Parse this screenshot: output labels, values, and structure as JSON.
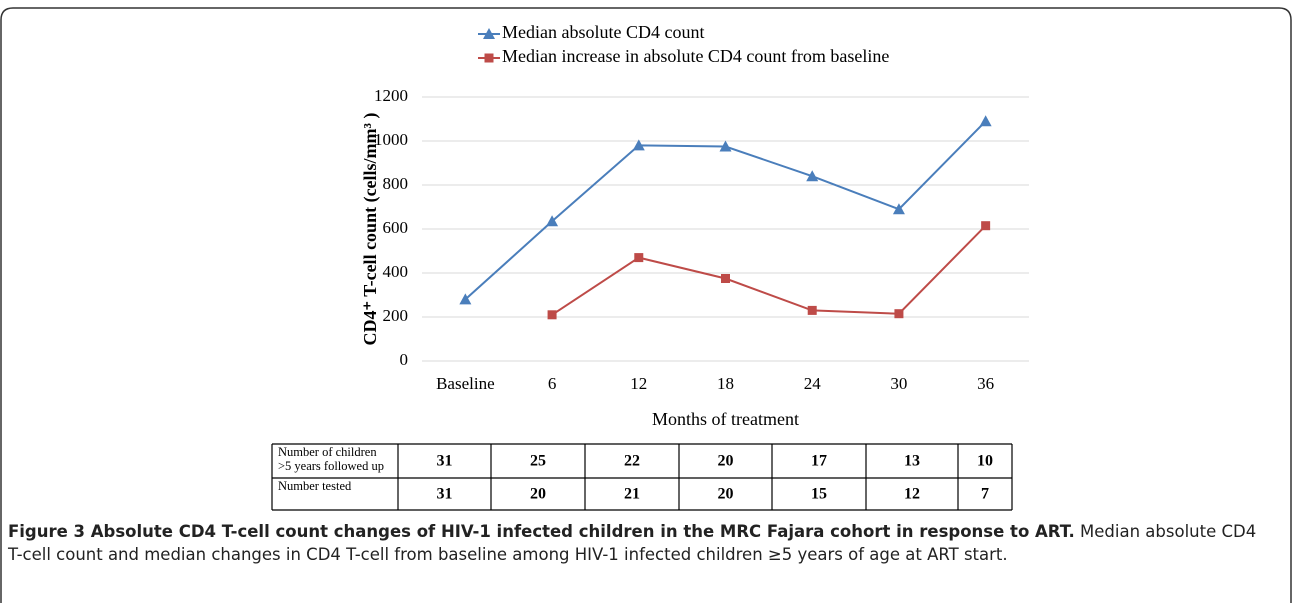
{
  "chart_data": {
    "type": "line",
    "categories": [
      "Baseline",
      "6",
      "12",
      "18",
      "24",
      "30",
      "36"
    ],
    "series": [
      {
        "name": "Median absolute CD4 count",
        "color": "#4a7ebb",
        "marker": "triangle",
        "values": [
          280,
          635,
          980,
          975,
          840,
          690,
          1090
        ]
      },
      {
        "name": "Median increase in absolute CD4 count from baseline",
        "color": "#be4b48",
        "marker": "square",
        "values": [
          null,
          210,
          470,
          375,
          230,
          215,
          615
        ]
      }
    ],
    "ylim": [
      0,
      1200
    ],
    "yticks": [
      0,
      200,
      400,
      600,
      800,
      1000,
      1200
    ],
    "grid": true,
    "x_label": "Months of treatment",
    "y_label": "CD4⁺ T-cell count  (cells/mm³ )",
    "legend": "top"
  },
  "table": {
    "rows": [
      {
        "label": [
          "Number of children",
          ">5 years followed up"
        ],
        "values": [
          31,
          25,
          22,
          20,
          17,
          13,
          10
        ]
      },
      {
        "label": [
          "Number tested"
        ],
        "values": [
          31,
          20,
          21,
          20,
          15,
          12,
          7
        ]
      }
    ]
  },
  "caption": {
    "title": "Figure 3 Absolute CD4 T-cell count changes of HIV-1 infected children in the MRC Fajara cohort in response to ART.",
    "text": "Median absolute CD4 T-cell count and median changes in CD4 T-cell from baseline among HIV-1 infected children ≥5 years of age at ART start."
  }
}
